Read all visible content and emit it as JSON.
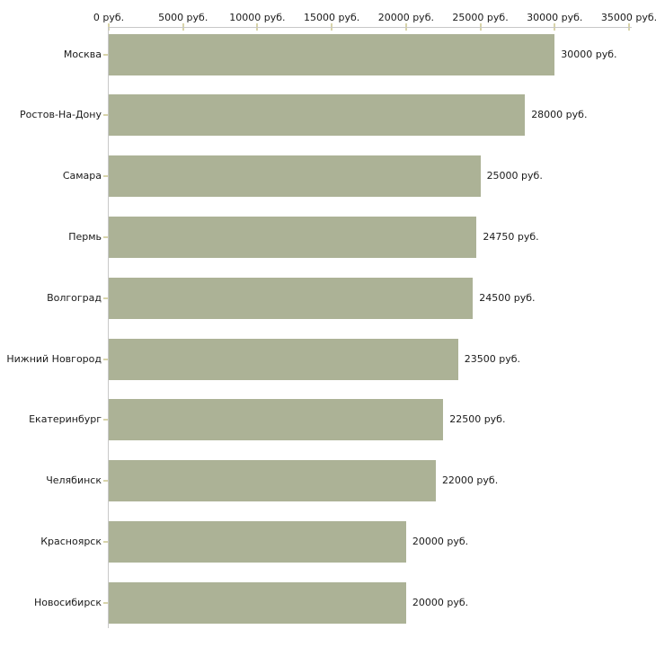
{
  "chart_data": {
    "type": "bar",
    "orientation": "horizontal",
    "title": "",
    "xlabel": "",
    "ylabel": "",
    "unit": "руб.",
    "grid": false,
    "legend": null,
    "axis_position": "top",
    "categories": [
      "Москва",
      "Ростов-На-Дону",
      "Самара",
      "Пермь",
      "Волгоград",
      "Нижний Новгород",
      "Екатеринбург",
      "Челябинск",
      "Красноярск",
      "Новосибирск"
    ],
    "values": [
      30000,
      28000,
      25000,
      24750,
      24500,
      23500,
      22500,
      22000,
      20000,
      20000
    ],
    "value_labels": [
      "30000 руб.",
      "28000 руб.",
      "25000 руб.",
      "24750 руб.",
      "24500 руб.",
      "23500 руб.",
      "22500 руб.",
      "22000 руб.",
      "20000 руб.",
      "20000 руб."
    ],
    "x_ticks": [
      0,
      5000,
      10000,
      15000,
      20000,
      25000,
      30000,
      35000
    ],
    "x_tick_labels": [
      "0 руб.",
      "5000 руб.",
      "10000 руб.",
      "15000 руб.",
      "20000 руб.",
      "25000 руб.",
      "30000 руб.",
      "35000 руб."
    ],
    "xlim": [
      0,
      35000
    ],
    "colors": {
      "bar": "#acb296",
      "tick_mark": "#d8d4aa",
      "axis_line": "#c8c8c8",
      "text": "#1a1a1a",
      "background": "#ffffff"
    }
  }
}
